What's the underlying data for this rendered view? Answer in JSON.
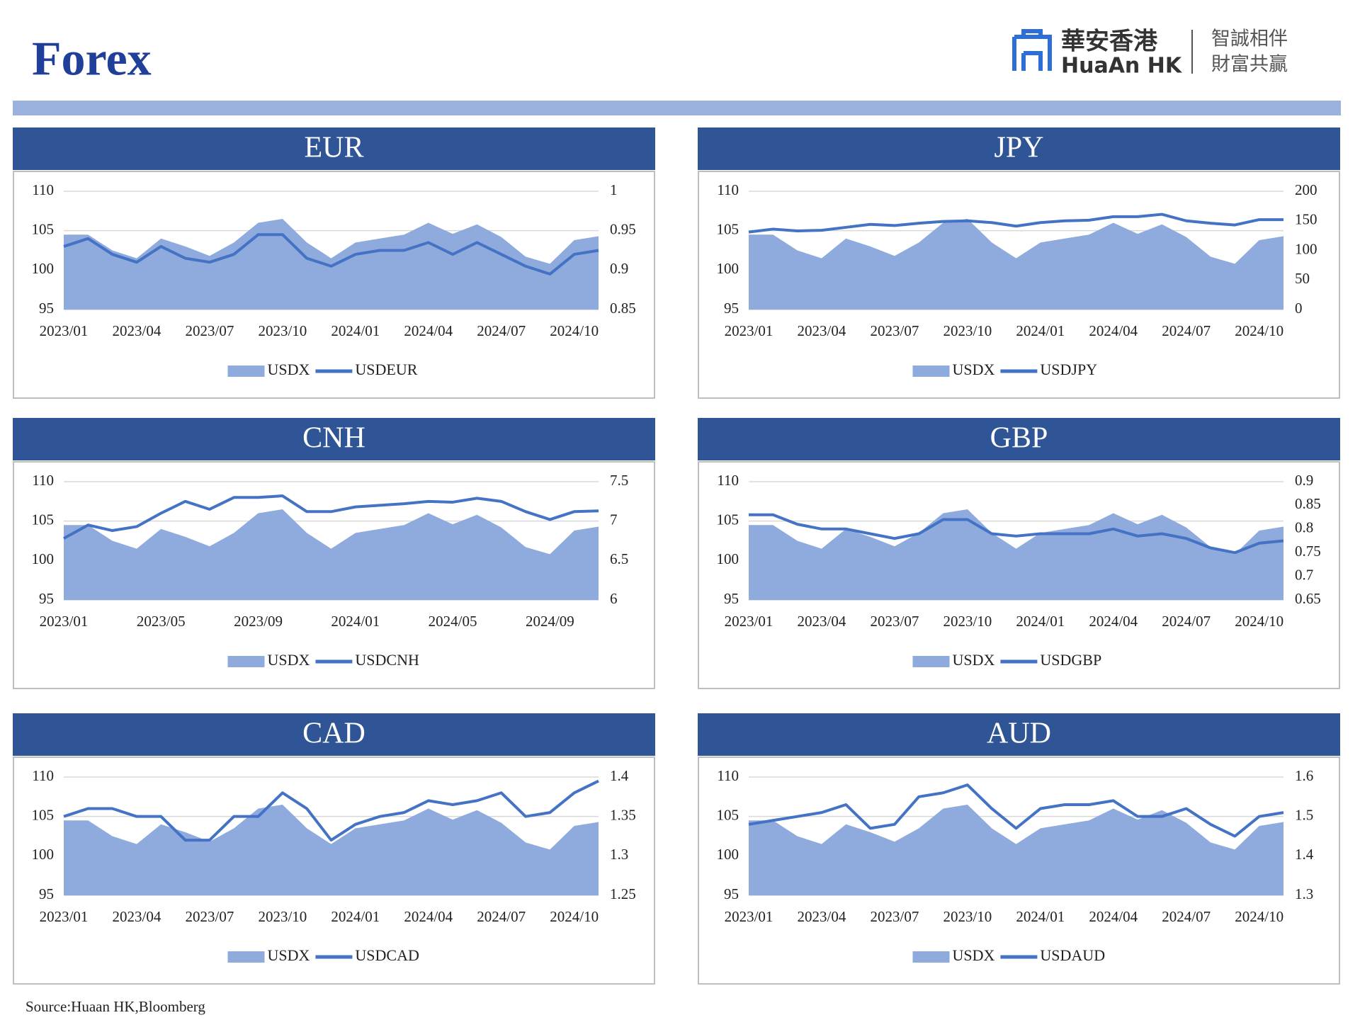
{
  "header": {
    "title": "Forex",
    "logo_cn": "華安香港",
    "logo_en": "HuaAn HK",
    "slogan_1": "智誠相伴",
    "slogan_2": "財富共贏"
  },
  "footer": {
    "source": "Source:Huaan HK,Bloomberg"
  },
  "chart_data": [
    {
      "type": "combo",
      "title": "EUR",
      "x": [
        "2023/01",
        "2023/02",
        "2023/03",
        "2023/04",
        "2023/05",
        "2023/06",
        "2023/07",
        "2023/08",
        "2023/09",
        "2023/10",
        "2023/11",
        "2023/12",
        "2024/01",
        "2024/02",
        "2024/03",
        "2024/04",
        "2024/05",
        "2024/06",
        "2024/07",
        "2024/08",
        "2024/09",
        "2024/10",
        "2024/11"
      ],
      "xticks": [
        "2023/01",
        "2023/04",
        "2023/07",
        "2023/10",
        "2024/01",
        "2024/04",
        "2024/07",
        "2024/10"
      ],
      "ylim": [
        95,
        110
      ],
      "yticks": [
        95,
        100,
        105,
        110
      ],
      "y2lim": [
        0.85,
        1
      ],
      "y2ticks": [
        0.85,
        0.9,
        0.95,
        1
      ],
      "grid": true,
      "series": [
        {
          "name": "USDX",
          "kind": "area",
          "color": "#8faadc",
          "values": [
            104.5,
            104.5,
            102.5,
            101.5,
            104,
            103,
            101.8,
            103.5,
            106,
            106.5,
            103.5,
            101.5,
            103.5,
            104,
            104.5,
            106,
            104.6,
            105.8,
            104.2,
            101.7,
            100.8,
            103.8,
            104.3
          ]
        },
        {
          "name": "USDEUR",
          "kind": "line",
          "axis": "y2",
          "color": "#4472c4",
          "values": [
            0.93,
            0.94,
            0.92,
            0.91,
            0.93,
            0.915,
            0.91,
            0.92,
            0.945,
            0.945,
            0.915,
            0.905,
            0.92,
            0.925,
            0.925,
            0.935,
            0.92,
            0.935,
            0.92,
            0.905,
            0.895,
            0.92,
            0.925
          ]
        }
      ]
    },
    {
      "type": "combo",
      "title": "JPY",
      "x": [
        "2023/01",
        "2023/02",
        "2023/03",
        "2023/04",
        "2023/05",
        "2023/06",
        "2023/07",
        "2023/08",
        "2023/09",
        "2023/10",
        "2023/11",
        "2023/12",
        "2024/01",
        "2024/02",
        "2024/03",
        "2024/04",
        "2024/05",
        "2024/06",
        "2024/07",
        "2024/08",
        "2024/09",
        "2024/10",
        "2024/11"
      ],
      "xticks": [
        "2023/01",
        "2023/04",
        "2023/07",
        "2023/10",
        "2024/01",
        "2024/04",
        "2024/07",
        "2024/10"
      ],
      "ylim": [
        95,
        110
      ],
      "yticks": [
        95,
        100,
        105,
        110
      ],
      "y2lim": [
        0,
        200
      ],
      "y2ticks": [
        0,
        50,
        100,
        150,
        200
      ],
      "grid": true,
      "series": [
        {
          "name": "USDX",
          "kind": "area",
          "color": "#8faadc",
          "values": [
            104.5,
            104.5,
            102.5,
            101.5,
            104,
            103,
            101.8,
            103.5,
            106,
            106.5,
            103.5,
            101.5,
            103.5,
            104,
            104.5,
            106,
            104.6,
            105.8,
            104.2,
            101.7,
            100.8,
            103.8,
            104.3
          ]
        },
        {
          "name": "USDJPY",
          "kind": "line",
          "axis": "y2",
          "color": "#4472c4",
          "values": [
            131,
            136,
            133,
            134,
            139,
            144,
            142,
            146,
            149,
            150,
            147,
            141,
            147,
            150,
            151,
            157,
            157,
            161,
            150,
            146,
            143,
            152,
            152
          ]
        }
      ]
    },
    {
      "type": "combo",
      "title": "CNH",
      "x": [
        "2023/01",
        "2023/02",
        "2023/03",
        "2023/04",
        "2023/05",
        "2023/06",
        "2023/07",
        "2023/08",
        "2023/09",
        "2023/10",
        "2023/11",
        "2023/12",
        "2024/01",
        "2024/02",
        "2024/03",
        "2024/04",
        "2024/05",
        "2024/06",
        "2024/07",
        "2024/08",
        "2024/09",
        "2024/10",
        "2024/11"
      ],
      "xticks": [
        "2023/01",
        "2023/05",
        "2023/09",
        "2024/01",
        "2024/05",
        "2024/09"
      ],
      "ylim": [
        95,
        110
      ],
      "yticks": [
        95,
        100,
        105,
        110
      ],
      "y2lim": [
        6,
        7.5
      ],
      "y2ticks": [
        6,
        6.5,
        7,
        7.5
      ],
      "grid": true,
      "series": [
        {
          "name": "USDX",
          "kind": "area",
          "color": "#8faadc",
          "values": [
            104.5,
            104.5,
            102.5,
            101.5,
            104,
            103,
            101.8,
            103.5,
            106,
            106.5,
            103.5,
            101.5,
            103.5,
            104,
            104.5,
            106,
            104.6,
            105.8,
            104.2,
            101.7,
            100.8,
            103.8,
            104.3
          ]
        },
        {
          "name": "USDCNH",
          "kind": "line",
          "axis": "y2",
          "color": "#4472c4",
          "values": [
            6.78,
            6.95,
            6.88,
            6.93,
            7.1,
            7.25,
            7.15,
            7.3,
            7.3,
            7.32,
            7.12,
            7.12,
            7.18,
            7.2,
            7.22,
            7.25,
            7.24,
            7.29,
            7.25,
            7.12,
            7.02,
            7.12,
            7.13
          ]
        }
      ]
    },
    {
      "type": "combo",
      "title": "GBP",
      "x": [
        "2023/01",
        "2023/02",
        "2023/03",
        "2023/04",
        "2023/05",
        "2023/06",
        "2023/07",
        "2023/08",
        "2023/09",
        "2023/10",
        "2023/11",
        "2023/12",
        "2024/01",
        "2024/02",
        "2024/03",
        "2024/04",
        "2024/05",
        "2024/06",
        "2024/07",
        "2024/08",
        "2024/09",
        "2024/10",
        "2024/11"
      ],
      "xticks": [
        "2023/01",
        "2023/04",
        "2023/07",
        "2023/10",
        "2024/01",
        "2024/04",
        "2024/07",
        "2024/10"
      ],
      "ylim": [
        95,
        110
      ],
      "yticks": [
        95,
        100,
        105,
        110
      ],
      "y2lim": [
        0.65,
        0.9
      ],
      "y2ticks": [
        0.65,
        0.7,
        0.75,
        0.8,
        0.85,
        0.9
      ],
      "grid": true,
      "series": [
        {
          "name": "USDX",
          "kind": "area",
          "color": "#8faadc",
          "values": [
            104.5,
            104.5,
            102.5,
            101.5,
            104,
            103,
            101.8,
            103.5,
            106,
            106.5,
            103.5,
            101.5,
            103.5,
            104,
            104.5,
            106,
            104.6,
            105.8,
            104.2,
            101.7,
            100.8,
            103.8,
            104.3
          ]
        },
        {
          "name": "USDGBP",
          "kind": "line",
          "axis": "y2",
          "color": "#4472c4",
          "values": [
            0.83,
            0.83,
            0.81,
            0.8,
            0.8,
            0.79,
            0.78,
            0.79,
            0.82,
            0.82,
            0.79,
            0.785,
            0.79,
            0.79,
            0.79,
            0.8,
            0.785,
            0.79,
            0.78,
            0.76,
            0.75,
            0.77,
            0.775
          ]
        }
      ]
    },
    {
      "type": "combo",
      "title": "CAD",
      "x": [
        "2023/01",
        "2023/02",
        "2023/03",
        "2023/04",
        "2023/05",
        "2023/06",
        "2023/07",
        "2023/08",
        "2023/09",
        "2023/10",
        "2023/11",
        "2023/12",
        "2024/01",
        "2024/02",
        "2024/03",
        "2024/04",
        "2024/05",
        "2024/06",
        "2024/07",
        "2024/08",
        "2024/09",
        "2024/10",
        "2024/11"
      ],
      "xticks": [
        "2023/01",
        "2023/04",
        "2023/07",
        "2023/10",
        "2024/01",
        "2024/04",
        "2024/07",
        "2024/10"
      ],
      "ylim": [
        95,
        110
      ],
      "yticks": [
        95,
        100,
        105,
        110
      ],
      "y2lim": [
        1.25,
        1.4
      ],
      "y2ticks": [
        1.25,
        1.3,
        1.35,
        1.4
      ],
      "grid": true,
      "series": [
        {
          "name": "USDX",
          "kind": "area",
          "color": "#8faadc",
          "values": [
            104.5,
            104.5,
            102.5,
            101.5,
            104,
            103,
            101.8,
            103.5,
            106,
            106.5,
            103.5,
            101.5,
            103.5,
            104,
            104.5,
            106,
            104.6,
            105.8,
            104.2,
            101.7,
            100.8,
            103.8,
            104.3
          ]
        },
        {
          "name": "USDCAD",
          "kind": "line",
          "axis": "y2",
          "color": "#4472c4",
          "values": [
            1.35,
            1.36,
            1.36,
            1.35,
            1.35,
            1.32,
            1.32,
            1.35,
            1.35,
            1.38,
            1.36,
            1.32,
            1.34,
            1.35,
            1.355,
            1.37,
            1.365,
            1.37,
            1.38,
            1.35,
            1.355,
            1.38,
            1.395
          ]
        }
      ]
    },
    {
      "type": "combo",
      "title": "AUD",
      "x": [
        "2023/01",
        "2023/02",
        "2023/03",
        "2023/04",
        "2023/05",
        "2023/06",
        "2023/07",
        "2023/08",
        "2023/09",
        "2023/10",
        "2023/11",
        "2023/12",
        "2024/01",
        "2024/02",
        "2024/03",
        "2024/04",
        "2024/05",
        "2024/06",
        "2024/07",
        "2024/08",
        "2024/09",
        "2024/10",
        "2024/11"
      ],
      "xticks": [
        "2023/01",
        "2023/04",
        "2023/07",
        "2023/10",
        "2024/01",
        "2024/04",
        "2024/07",
        "2024/10"
      ],
      "ylim": [
        95,
        110
      ],
      "yticks": [
        95,
        100,
        105,
        110
      ],
      "y2lim": [
        1.3,
        1.6
      ],
      "y2ticks": [
        1.3,
        1.4,
        1.5,
        1.6
      ],
      "grid": true,
      "series": [
        {
          "name": "USDX",
          "kind": "area",
          "color": "#8faadc",
          "values": [
            104.5,
            104.5,
            102.5,
            101.5,
            104,
            103,
            101.8,
            103.5,
            106,
            106.5,
            103.5,
            101.5,
            103.5,
            104,
            104.5,
            106,
            104.6,
            105.8,
            104.2,
            101.7,
            100.8,
            103.8,
            104.3
          ]
        },
        {
          "name": "USDAUD",
          "kind": "line",
          "axis": "y2",
          "color": "#4472c4",
          "values": [
            1.48,
            1.49,
            1.5,
            1.51,
            1.53,
            1.47,
            1.48,
            1.55,
            1.56,
            1.58,
            1.52,
            1.47,
            1.52,
            1.53,
            1.53,
            1.54,
            1.5,
            1.5,
            1.52,
            1.48,
            1.45,
            1.5,
            1.51
          ]
        }
      ]
    }
  ]
}
